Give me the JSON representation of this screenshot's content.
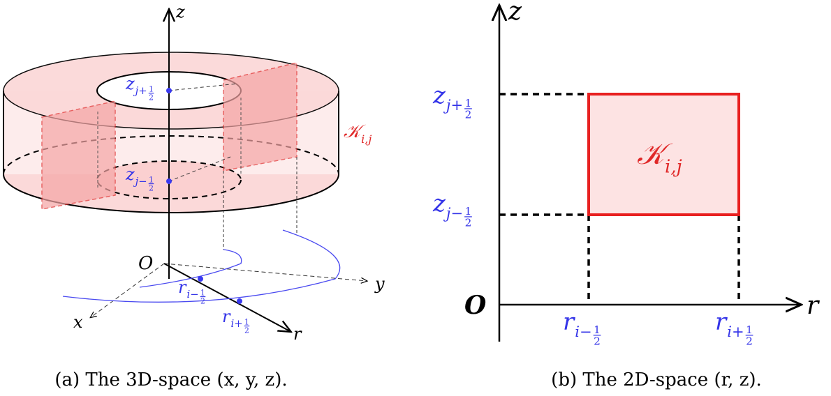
{
  "panel_a": {
    "caption": "(a) The 3D-space (x, y, z).",
    "axes": {
      "z": "z",
      "y": "y",
      "x": "x",
      "r": "r",
      "origin": "O"
    },
    "labels": {
      "z_top": {
        "main": "z",
        "sub": "j+",
        "num": "1",
        "den": "2"
      },
      "z_bottom": {
        "main": "z",
        "sub": "j−",
        "num": "1",
        "den": "2"
      },
      "r_inner": {
        "main": "r",
        "sub": "i−",
        "num": "1",
        "den": "2"
      },
      "r_outer": {
        "main": "r",
        "sub": "i+",
        "num": "1",
        "den": "2"
      },
      "cell": {
        "main": "𝒦",
        "sub": "i,j"
      }
    }
  },
  "panel_b": {
    "caption": "(b) The 2D-space (r, z).",
    "axes": {
      "z": "z",
      "r": "r",
      "origin": "O"
    },
    "labels": {
      "z_top": {
        "main": "z",
        "sub": "j+",
        "num": "1",
        "den": "2"
      },
      "z_bottom": {
        "main": "z",
        "sub": "j−",
        "num": "1",
        "den": "2"
      },
      "r_inner": {
        "main": "r",
        "sub": "i−",
        "num": "1",
        "den": "2"
      },
      "r_outer": {
        "main": "r",
        "sub": "i+",
        "num": "1",
        "den": "2"
      },
      "cell": {
        "main": "𝒦",
        "sub": "i,j"
      }
    }
  }
}
